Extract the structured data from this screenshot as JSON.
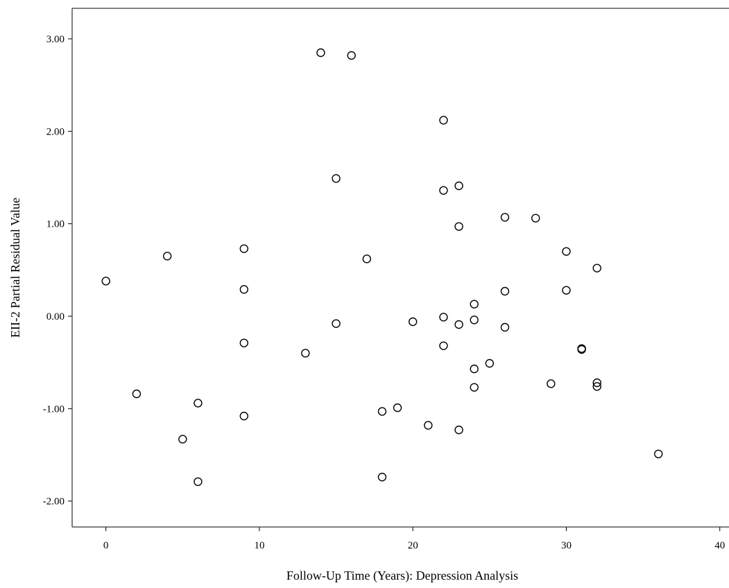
{
  "chart_data": {
    "type": "scatter",
    "xlabel": "Follow-Up Time (Years): Depression Analysis",
    "ylabel": "EII-2 Partial Residual Value",
    "xlim": [
      -2.2,
      40.6
    ],
    "ylim": [
      -2.28,
      3.33
    ],
    "x_ticks": [
      0,
      10,
      20,
      30,
      40
    ],
    "x_tick_labels": [
      "0",
      "10",
      "20",
      "30",
      "40"
    ],
    "y_ticks": [
      3,
      2,
      1,
      0,
      -1,
      -2
    ],
    "y_tick_labels": [
      "3.00",
      "2.00",
      "1.00",
      "0.00",
      "-1.00",
      "-2.00"
    ],
    "grid": false,
    "marker": "open-circle",
    "points": [
      {
        "x": 0,
        "y": 0.38
      },
      {
        "x": 2,
        "y": -0.84
      },
      {
        "x": 4,
        "y": 0.65
      },
      {
        "x": 5,
        "y": -1.33
      },
      {
        "x": 6,
        "y": -0.94
      },
      {
        "x": 6,
        "y": -1.79
      },
      {
        "x": 9,
        "y": 0.73
      },
      {
        "x": 9,
        "y": 0.29
      },
      {
        "x": 9,
        "y": -0.29
      },
      {
        "x": 9,
        "y": -1.08
      },
      {
        "x": 13,
        "y": -0.4
      },
      {
        "x": 14,
        "y": 2.85
      },
      {
        "x": 15,
        "y": 1.49
      },
      {
        "x": 15,
        "y": -0.08
      },
      {
        "x": 16,
        "y": 2.82
      },
      {
        "x": 17,
        "y": 0.62
      },
      {
        "x": 18,
        "y": -1.03
      },
      {
        "x": 18,
        "y": -1.74
      },
      {
        "x": 19,
        "y": -0.99
      },
      {
        "x": 20,
        "y": -0.06
      },
      {
        "x": 21,
        "y": -1.18
      },
      {
        "x": 22,
        "y": 2.12
      },
      {
        "x": 22,
        "y": 1.36
      },
      {
        "x": 22,
        "y": -0.01
      },
      {
        "x": 22,
        "y": -0.32
      },
      {
        "x": 23,
        "y": 1.41
      },
      {
        "x": 23,
        "y": 0.97
      },
      {
        "x": 23,
        "y": -0.09
      },
      {
        "x": 23,
        "y": -1.23
      },
      {
        "x": 24,
        "y": 0.13
      },
      {
        "x": 24,
        "y": -0.04
      },
      {
        "x": 24,
        "y": -0.57
      },
      {
        "x": 24,
        "y": -0.77
      },
      {
        "x": 25,
        "y": -0.51
      },
      {
        "x": 26,
        "y": 1.07
      },
      {
        "x": 26,
        "y": 0.27
      },
      {
        "x": 26,
        "y": -0.12
      },
      {
        "x": 28,
        "y": 1.06
      },
      {
        "x": 29,
        "y": -0.73
      },
      {
        "x": 30,
        "y": 0.7
      },
      {
        "x": 30,
        "y": 0.28
      },
      {
        "x": 31,
        "y": -0.35
      },
      {
        "x": 31,
        "y": -0.36
      },
      {
        "x": 32,
        "y": 0.52
      },
      {
        "x": 32,
        "y": -0.72
      },
      {
        "x": 32,
        "y": -0.76
      },
      {
        "x": 36,
        "y": -1.49
      }
    ]
  }
}
